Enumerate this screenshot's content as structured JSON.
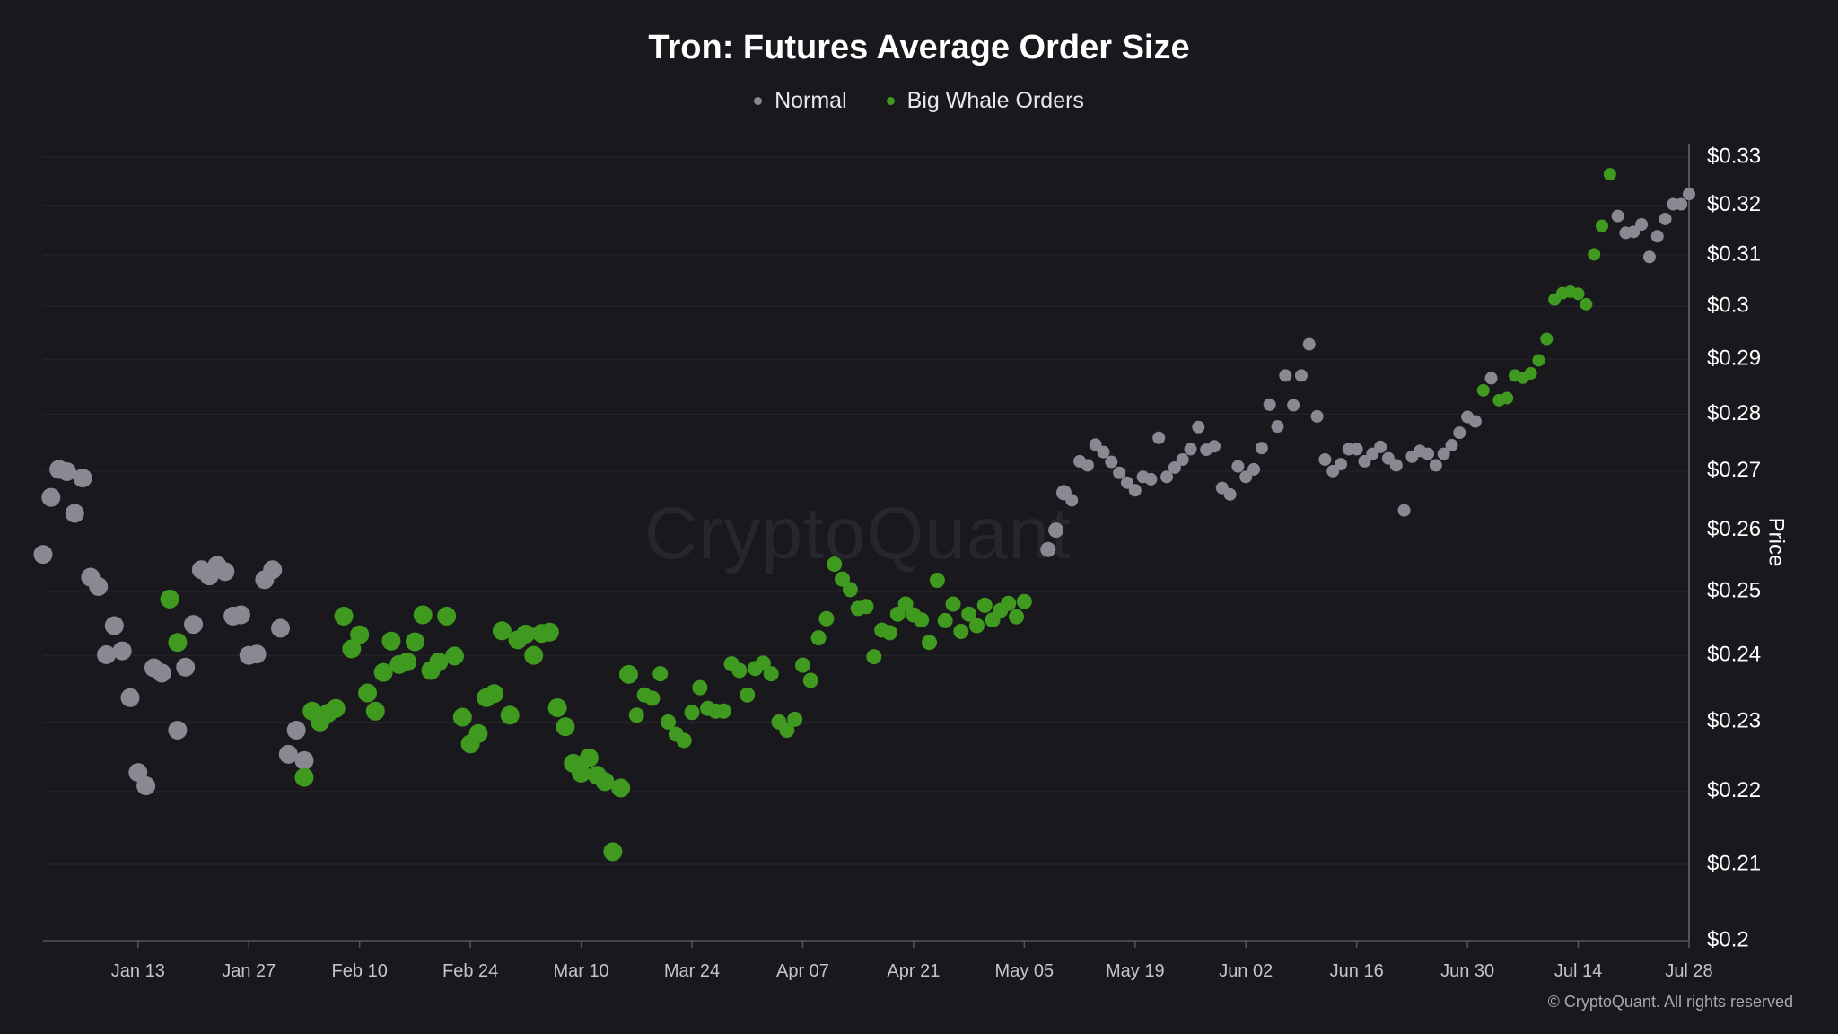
{
  "chart_data": {
    "type": "scatter",
    "title": "Tron: Futures Average Order Size",
    "ylabel": "Price",
    "xlabel": "",
    "x_start": "2025-01-01",
    "x_end": "2025-07-28",
    "x_ticks": [
      "Jan 13",
      "Jan 27",
      "Feb 10",
      "Feb 24",
      "Mar 10",
      "Mar 24",
      "Apr 07",
      "Apr 21",
      "May 05",
      "May 19",
      "Jun 02",
      "Jun 16",
      "Jun 30",
      "Jul 14",
      "Jul 28"
    ],
    "x_tick_dates": [
      "2025-01-13",
      "2025-01-27",
      "2025-02-10",
      "2025-02-24",
      "2025-03-10",
      "2025-03-24",
      "2025-04-07",
      "2025-04-21",
      "2025-05-05",
      "2025-05-19",
      "2025-06-02",
      "2025-06-16",
      "2025-06-30",
      "2025-07-14",
      "2025-07-28"
    ],
    "y_scale": "log",
    "ylim": [
      0.2,
      0.33
    ],
    "y_ticks": [
      "$0.2",
      "$0.21",
      "$0.22",
      "$0.23",
      "$0.24",
      "$0.25",
      "$0.26",
      "$0.27",
      "$0.28",
      "$0.29",
      "$0.3",
      "$0.31",
      "$0.32",
      "$0.33"
    ],
    "y_tick_values": [
      0.2,
      0.21,
      0.22,
      0.23,
      0.24,
      0.25,
      0.26,
      0.27,
      0.28,
      0.29,
      0.3,
      0.31,
      0.32,
      0.33
    ],
    "legend_position": "top-center",
    "grid": "horizontal",
    "series": [
      {
        "name": "Normal",
        "color": "#8a8893",
        "points": [
          [
            "2025-01-01",
            0.256
          ],
          [
            "2025-01-02",
            0.2655
          ],
          [
            "2025-01-03",
            0.2703
          ],
          [
            "2025-01-04",
            0.2699
          ],
          [
            "2025-01-05",
            0.2628
          ],
          [
            "2025-01-06",
            0.2688
          ],
          [
            "2025-01-07",
            0.2523
          ],
          [
            "2025-01-08",
            0.2508
          ],
          [
            "2025-01-09",
            0.2401
          ],
          [
            "2025-01-10",
            0.2446
          ],
          [
            "2025-01-11",
            0.2407
          ],
          [
            "2025-01-12",
            0.2336
          ],
          [
            "2025-01-13",
            0.2227
          ],
          [
            "2025-01-14",
            0.2208
          ],
          [
            "2025-01-15",
            0.2381
          ],
          [
            "2025-01-16",
            0.2373
          ],
          [
            "2025-01-18",
            0.2288
          ],
          [
            "2025-01-19",
            0.2382
          ],
          [
            "2025-01-20",
            0.2448
          ],
          [
            "2025-01-21",
            0.2535
          ],
          [
            "2025-01-22",
            0.2525
          ],
          [
            "2025-01-23",
            0.2542
          ],
          [
            "2025-01-24",
            0.2532
          ],
          [
            "2025-01-25",
            0.2461
          ],
          [
            "2025-01-26",
            0.2463
          ],
          [
            "2025-01-27",
            0.24
          ],
          [
            "2025-01-28",
            0.2402
          ],
          [
            "2025-01-29",
            0.2519
          ],
          [
            "2025-01-30",
            0.2535
          ],
          [
            "2025-01-31",
            0.2442
          ],
          [
            "2025-02-01",
            0.2253
          ],
          [
            "2025-02-02",
            0.2288
          ],
          [
            "2025-02-03",
            0.2244
          ],
          [
            "2025-05-08",
            0.2568
          ],
          [
            "2025-05-09",
            0.26
          ],
          [
            "2025-05-10",
            0.2663
          ],
          [
            "2025-05-11",
            0.265
          ],
          [
            "2025-05-12",
            0.2717
          ],
          [
            "2025-05-13",
            0.271
          ],
          [
            "2025-05-14",
            0.2746
          ],
          [
            "2025-05-15",
            0.2733
          ],
          [
            "2025-05-16",
            0.2716
          ],
          [
            "2025-05-17",
            0.2697
          ],
          [
            "2025-05-18",
            0.268
          ],
          [
            "2025-05-19",
            0.2667
          ],
          [
            "2025-05-20",
            0.269
          ],
          [
            "2025-05-21",
            0.2686
          ],
          [
            "2025-05-22",
            0.2758
          ],
          [
            "2025-05-23",
            0.269
          ],
          [
            "2025-05-24",
            0.2706
          ],
          [
            "2025-05-25",
            0.272
          ],
          [
            "2025-05-26",
            0.2738
          ],
          [
            "2025-05-27",
            0.2777
          ],
          [
            "2025-05-28",
            0.2737
          ],
          [
            "2025-05-29",
            0.2743
          ],
          [
            "2025-05-30",
            0.2671
          ],
          [
            "2025-05-31",
            0.266
          ],
          [
            "2025-06-01",
            0.2708
          ],
          [
            "2025-06-02",
            0.269
          ],
          [
            "2025-06-03",
            0.2703
          ],
          [
            "2025-06-04",
            0.274
          ],
          [
            "2025-06-05",
            0.2817
          ],
          [
            "2025-06-06",
            0.2778
          ],
          [
            "2025-06-07",
            0.287
          ],
          [
            "2025-06-08",
            0.2816
          ],
          [
            "2025-06-09",
            0.287
          ],
          [
            "2025-06-10",
            0.2928
          ],
          [
            "2025-06-11",
            0.2796
          ],
          [
            "2025-06-12",
            0.272
          ],
          [
            "2025-06-13",
            0.27
          ],
          [
            "2025-06-14",
            0.2712
          ],
          [
            "2025-06-15",
            0.2738
          ],
          [
            "2025-06-16",
            0.2738
          ],
          [
            "2025-06-17",
            0.2717
          ],
          [
            "2025-06-18",
            0.273
          ],
          [
            "2025-06-19",
            0.2742
          ],
          [
            "2025-06-20",
            0.2722
          ],
          [
            "2025-06-21",
            0.271
          ],
          [
            "2025-06-22",
            0.2633
          ],
          [
            "2025-06-23",
            0.2725
          ],
          [
            "2025-06-24",
            0.2735
          ],
          [
            "2025-06-25",
            0.273
          ],
          [
            "2025-06-26",
            0.271
          ],
          [
            "2025-06-27",
            0.273
          ],
          [
            "2025-06-28",
            0.2745
          ],
          [
            "2025-06-29",
            0.2767
          ],
          [
            "2025-06-30",
            0.2795
          ],
          [
            "2025-07-01",
            0.2787
          ],
          [
            "2025-07-03",
            0.2865
          ],
          [
            "2025-07-19",
            0.3178
          ],
          [
            "2025-07-20",
            0.3144
          ],
          [
            "2025-07-21",
            0.3146
          ],
          [
            "2025-07-22",
            0.3161
          ],
          [
            "2025-07-23",
            0.3096
          ],
          [
            "2025-07-24",
            0.3137
          ],
          [
            "2025-07-25",
            0.3172
          ],
          [
            "2025-07-26",
            0.3202
          ],
          [
            "2025-07-27",
            0.3202
          ],
          [
            "2025-07-28",
            0.3223
          ]
        ]
      },
      {
        "name": "Big Whale Orders",
        "color": "#3f9a1f",
        "points": [
          [
            "2025-01-17",
            0.2488
          ],
          [
            "2025-01-18",
            0.242
          ],
          [
            "2025-02-03",
            0.222
          ],
          [
            "2025-02-04",
            0.2316
          ],
          [
            "2025-02-05",
            0.23
          ],
          [
            "2025-02-06",
            0.2313
          ],
          [
            "2025-02-07",
            0.232
          ],
          [
            "2025-02-08",
            0.2461
          ],
          [
            "2025-02-09",
            0.241
          ],
          [
            "2025-02-10",
            0.2432
          ],
          [
            "2025-02-11",
            0.2343
          ],
          [
            "2025-02-12",
            0.2316
          ],
          [
            "2025-02-13",
            0.2374
          ],
          [
            "2025-02-14",
            0.2422
          ],
          [
            "2025-02-15",
            0.2386
          ],
          [
            "2025-02-16",
            0.239
          ],
          [
            "2025-02-17",
            0.2421
          ],
          [
            "2025-02-18",
            0.2463
          ],
          [
            "2025-02-19",
            0.2377
          ],
          [
            "2025-02-20",
            0.239
          ],
          [
            "2025-02-21",
            0.2461
          ],
          [
            "2025-02-22",
            0.2399
          ],
          [
            "2025-02-23",
            0.2307
          ],
          [
            "2025-02-24",
            0.2268
          ],
          [
            "2025-02-25",
            0.2283
          ],
          [
            "2025-02-26",
            0.2336
          ],
          [
            "2025-02-27",
            0.2342
          ],
          [
            "2025-02-28",
            0.2438
          ],
          [
            "2025-03-01",
            0.231
          ],
          [
            "2025-03-02",
            0.2424
          ],
          [
            "2025-03-03",
            0.2433
          ],
          [
            "2025-03-04",
            0.24
          ],
          [
            "2025-03-05",
            0.2434
          ],
          [
            "2025-03-06",
            0.2436
          ],
          [
            "2025-03-07",
            0.2321
          ],
          [
            "2025-03-08",
            0.2293
          ],
          [
            "2025-03-09",
            0.224
          ],
          [
            "2025-03-10",
            0.2226
          ],
          [
            "2025-03-11",
            0.2248
          ],
          [
            "2025-03-12",
            0.2223
          ],
          [
            "2025-03-13",
            0.2214
          ],
          [
            "2025-03-14",
            0.2117
          ],
          [
            "2025-03-15",
            0.2205
          ],
          [
            "2025-03-16",
            0.2371
          ],
          [
            "2025-03-17",
            0.231
          ],
          [
            "2025-03-18",
            0.234
          ],
          [
            "2025-03-19",
            0.2335
          ],
          [
            "2025-03-20",
            0.2372
          ],
          [
            "2025-03-21",
            0.23
          ],
          [
            "2025-03-22",
            0.2282
          ],
          [
            "2025-03-23",
            0.2273
          ],
          [
            "2025-03-24",
            0.2314
          ],
          [
            "2025-03-25",
            0.2351
          ],
          [
            "2025-03-26",
            0.232
          ],
          [
            "2025-03-27",
            0.2316
          ],
          [
            "2025-03-28",
            0.2316
          ],
          [
            "2025-03-29",
            0.2387
          ],
          [
            "2025-03-30",
            0.2377
          ],
          [
            "2025-03-31",
            0.234
          ],
          [
            "2025-04-01",
            0.238
          ],
          [
            "2025-04-02",
            0.2388
          ],
          [
            "2025-04-03",
            0.2372
          ],
          [
            "2025-04-04",
            0.23
          ],
          [
            "2025-04-05",
            0.2288
          ],
          [
            "2025-04-06",
            0.2304
          ],
          [
            "2025-04-07",
            0.2385
          ],
          [
            "2025-04-08",
            0.2362
          ],
          [
            "2025-04-09",
            0.2427
          ],
          [
            "2025-04-10",
            0.2457
          ],
          [
            "2025-04-11",
            0.2544
          ],
          [
            "2025-04-12",
            0.252
          ],
          [
            "2025-04-13",
            0.2503
          ],
          [
            "2025-04-14",
            0.2473
          ],
          [
            "2025-04-15",
            0.2476
          ],
          [
            "2025-04-16",
            0.2398
          ],
          [
            "2025-04-17",
            0.2439
          ],
          [
            "2025-04-18",
            0.2435
          ],
          [
            "2025-04-19",
            0.2464
          ],
          [
            "2025-04-20",
            0.248
          ],
          [
            "2025-04-21",
            0.2463
          ],
          [
            "2025-04-22",
            0.2455
          ],
          [
            "2025-04-23",
            0.242
          ],
          [
            "2025-04-24",
            0.2518
          ],
          [
            "2025-04-25",
            0.2454
          ],
          [
            "2025-04-26",
            0.248
          ],
          [
            "2025-04-27",
            0.2437
          ],
          [
            "2025-04-28",
            0.2464
          ],
          [
            "2025-04-29",
            0.2446
          ],
          [
            "2025-04-30",
            0.2478
          ],
          [
            "2025-05-01",
            0.2455
          ],
          [
            "2025-05-02",
            0.247
          ],
          [
            "2025-05-03",
            0.2481
          ],
          [
            "2025-05-04",
            0.246
          ],
          [
            "2025-05-05",
            0.2484
          ],
          [
            "2025-07-02",
            0.2843
          ],
          [
            "2025-07-04",
            0.2825
          ],
          [
            "2025-07-05",
            0.2829
          ],
          [
            "2025-07-06",
            0.287
          ],
          [
            "2025-07-07",
            0.2866
          ],
          [
            "2025-07-08",
            0.2874
          ],
          [
            "2025-07-09",
            0.2898
          ],
          [
            "2025-07-10",
            0.2938
          ],
          [
            "2025-07-11",
            0.3013
          ],
          [
            "2025-07-12",
            0.3025
          ],
          [
            "2025-07-13",
            0.3028
          ],
          [
            "2025-07-14",
            0.3024
          ],
          [
            "2025-07-15",
            0.3004
          ],
          [
            "2025-07-16",
            0.3101
          ],
          [
            "2025-07-17",
            0.3158
          ],
          [
            "2025-07-18",
            0.3264
          ]
        ]
      }
    ]
  },
  "legend": {
    "items": [
      {
        "label": "Normal",
        "color": "#8a8893"
      },
      {
        "label": "Big Whale Orders",
        "color": "#3f9a1f"
      }
    ]
  },
  "watermark": "CryptoQuant",
  "copyright": "© CryptoQuant. All rights reserved"
}
